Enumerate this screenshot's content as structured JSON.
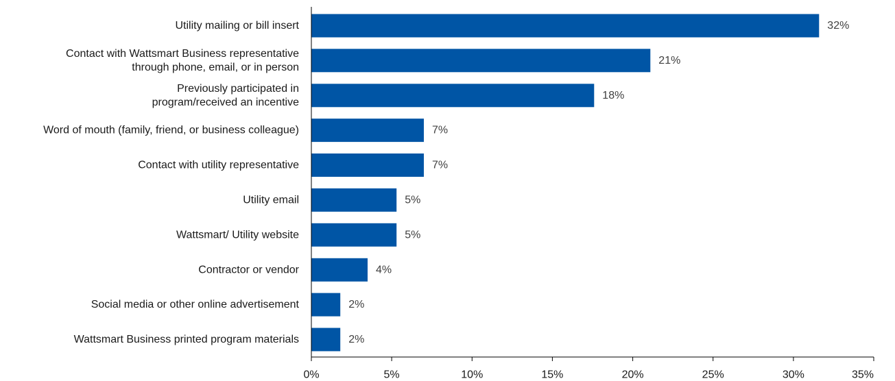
{
  "chart_data": {
    "type": "bar",
    "orientation": "horizontal",
    "categories": [
      [
        "Utility mailing or bill insert"
      ],
      [
        "Contact with Wattsmart Business  representative",
        "through phone, email, or in person"
      ],
      [
        "Previously participated in",
        "program/received an incentive"
      ],
      [
        "Word of mouth (family, friend, or business colleague)"
      ],
      [
        "Contact with utility representative"
      ],
      [
        "Utility email"
      ],
      [
        "Wattsmart/ Utility website"
      ],
      [
        "Contractor or vendor"
      ],
      [
        "Social media or other online advertisement"
      ],
      [
        "Wattsmart Business printed program materials"
      ]
    ],
    "values": [
      31.6,
      21.1,
      17.6,
      7.0,
      7.0,
      5.3,
      5.3,
      3.5,
      1.8,
      1.8
    ],
    "value_labels": [
      "32%",
      "21%",
      "18%",
      "7%",
      "7%",
      "5%",
      "5%",
      "4%",
      "2%",
      "2%"
    ],
    "xlim": [
      0,
      35
    ],
    "xticks": [
      0,
      5,
      10,
      15,
      20,
      25,
      30,
      35
    ],
    "xtick_labels": [
      "0%",
      "5%",
      "10%",
      "15%",
      "20%",
      "25%",
      "30%",
      "35%"
    ],
    "title": "",
    "xlabel": "",
    "ylabel": "",
    "grid": false,
    "legend": "none",
    "bar_color": "#0055A5",
    "axis_color": "#000000"
  }
}
